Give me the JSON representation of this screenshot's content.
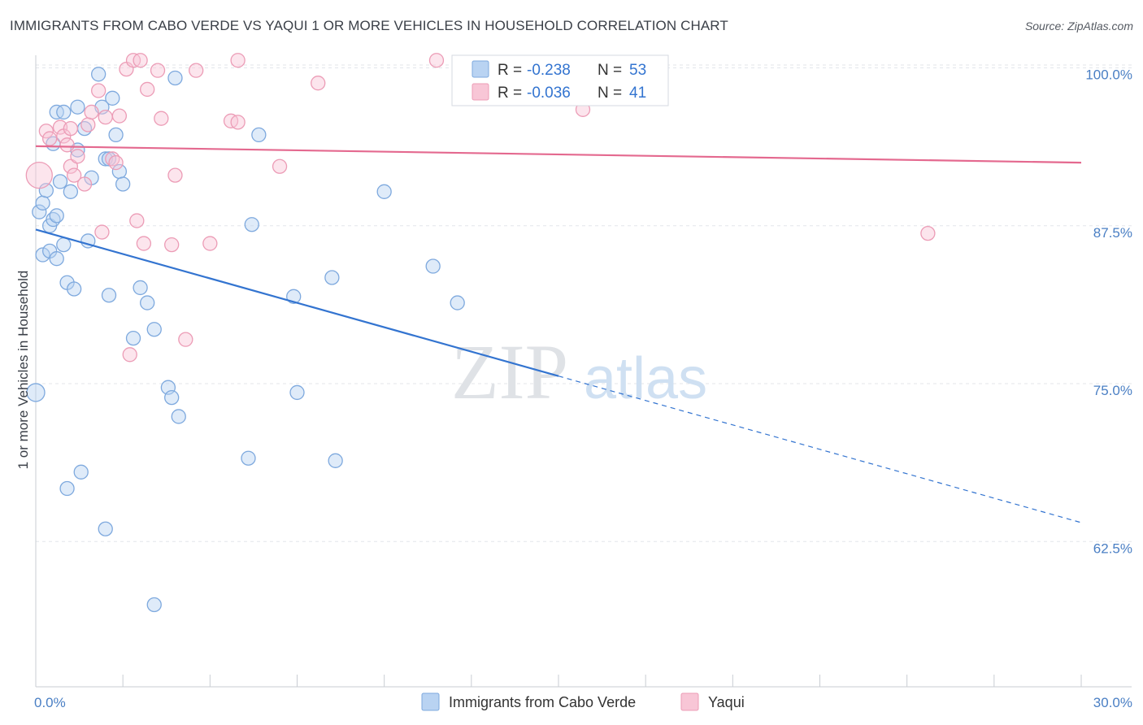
{
  "title": "IMMIGRANTS FROM CABO VERDE VS YAQUI 1 OR MORE VEHICLES IN HOUSEHOLD CORRELATION CHART",
  "source": "Source: ZipAtlas.com",
  "watermark": {
    "zip": "ZIP",
    "atlas": "atlas"
  },
  "colors": {
    "blue_fill": "#b9d3f2",
    "blue_stroke": "#7ea9de",
    "blue_line": "#3374d0",
    "pink_fill": "#f8c6d6",
    "pink_stroke": "#ec9cb6",
    "pink_line": "#e4698f",
    "tick_label": "#4a7fc4",
    "grid": "#e3e6ea"
  },
  "legend": {
    "rows": [
      {
        "r_label": "R =",
        "r_value": "-0.238",
        "n_label": "N =",
        "n_value": "53"
      },
      {
        "r_label": "R =",
        "r_value": "-0.036",
        "n_label": "N =",
        "n_value": "41"
      }
    ]
  },
  "chart_data": {
    "type": "scatter",
    "xlabel": "",
    "ylabel": "1 or more Vehicles in Household",
    "xlim": [
      0,
      30
    ],
    "ylim": [
      51,
      101
    ],
    "x_tick_labels": [
      {
        "value": 0,
        "label": "0.0%"
      },
      {
        "value": 30,
        "label": "30.0%"
      }
    ],
    "y_tick_labels": [
      {
        "value": 100,
        "label": "100.0%"
      },
      {
        "value": 87.5,
        "label": "87.5%"
      },
      {
        "value": 75,
        "label": "75.0%"
      },
      {
        "value": 62.5,
        "label": "62.5%"
      }
    ],
    "grid": true,
    "legend_position": "top-center",
    "series": [
      {
        "name": "Immigrants from Cabo Verde",
        "color": "blue",
        "R": -0.238,
        "N": 53,
        "trend": {
          "x_start": 0,
          "y_start": 87.2,
          "x_solid_end": 15,
          "y_solid_end": 75.6,
          "x_end": 30,
          "y_end": 64.0
        },
        "points": [
          [
            0.0,
            74.3,
            2
          ],
          [
            0.1,
            88.6,
            1
          ],
          [
            0.2,
            89.3,
            1
          ],
          [
            0.2,
            85.2,
            1
          ],
          [
            0.3,
            90.3,
            1
          ],
          [
            0.4,
            85.5,
            1
          ],
          [
            0.4,
            87.5,
            1
          ],
          [
            0.5,
            94.0,
            1
          ],
          [
            0.5,
            88.0,
            1
          ],
          [
            0.6,
            96.5,
            1
          ],
          [
            0.6,
            84.9,
            1
          ],
          [
            0.6,
            88.3,
            1
          ],
          [
            0.7,
            91.0,
            1
          ],
          [
            0.8,
            96.5,
            1
          ],
          [
            0.8,
            86.0,
            1
          ],
          [
            0.9,
            83.0,
            1
          ],
          [
            0.9,
            66.7,
            1
          ],
          [
            1.0,
            90.2,
            1
          ],
          [
            1.1,
            82.5,
            1
          ],
          [
            1.2,
            93.5,
            1
          ],
          [
            1.2,
            96.9,
            1
          ],
          [
            1.3,
            68.0,
            1
          ],
          [
            1.4,
            95.2,
            1
          ],
          [
            1.5,
            86.3,
            1
          ],
          [
            1.6,
            91.3,
            1
          ],
          [
            1.8,
            99.5,
            1
          ],
          [
            1.9,
            96.9,
            1
          ],
          [
            2.0,
            92.8,
            1
          ],
          [
            2.0,
            63.5,
            1
          ],
          [
            2.1,
            82.0,
            1
          ],
          [
            2.1,
            92.8,
            1
          ],
          [
            2.2,
            97.6,
            1
          ],
          [
            2.3,
            94.7,
            1
          ],
          [
            2.4,
            91.8,
            1
          ],
          [
            2.5,
            90.8,
            1
          ],
          [
            2.8,
            78.6,
            1
          ],
          [
            3.0,
            82.6,
            1
          ],
          [
            3.2,
            81.4,
            1
          ],
          [
            3.4,
            57.5,
            1
          ],
          [
            3.4,
            79.3,
            1
          ],
          [
            3.8,
            74.7,
            1
          ],
          [
            3.9,
            73.9,
            1
          ],
          [
            4.0,
            99.2,
            1
          ],
          [
            4.1,
            72.4,
            1
          ],
          [
            6.1,
            69.1,
            1
          ],
          [
            6.2,
            87.6,
            1
          ],
          [
            6.4,
            94.7,
            1
          ],
          [
            7.4,
            81.9,
            1
          ],
          [
            7.5,
            74.3,
            1
          ],
          [
            8.5,
            83.4,
            1
          ],
          [
            8.6,
            68.9,
            1
          ],
          [
            10.0,
            90.2,
            1
          ],
          [
            11.4,
            84.3,
            1
          ],
          [
            12.1,
            81.4,
            1
          ]
        ]
      },
      {
        "name": "Yaqui",
        "color": "pink",
        "R": -0.036,
        "N": 41,
        "trend": {
          "x_start": 0,
          "y_start": 93.8,
          "x_end": 30,
          "y_end": 92.5
        },
        "points": [
          [
            0.1,
            91.5,
            3
          ],
          [
            0.3,
            95.0,
            1
          ],
          [
            0.4,
            94.4,
            1
          ],
          [
            0.7,
            95.3,
            1
          ],
          [
            0.8,
            94.6,
            1
          ],
          [
            0.9,
            93.9,
            1
          ],
          [
            1.0,
            92.2,
            1
          ],
          [
            1.1,
            91.5,
            1
          ],
          [
            1.2,
            93.0,
            1
          ],
          [
            1.4,
            90.8,
            1
          ],
          [
            1.5,
            95.5,
            1
          ],
          [
            1.6,
            96.5,
            1
          ],
          [
            1.8,
            98.2,
            1
          ],
          [
            1.9,
            87.0,
            1
          ],
          [
            2.0,
            96.1,
            1
          ],
          [
            2.2,
            92.8,
            1
          ],
          [
            2.3,
            92.5,
            1
          ],
          [
            2.4,
            96.2,
            1
          ],
          [
            2.6,
            99.9,
            1
          ],
          [
            2.7,
            77.3,
            1
          ],
          [
            2.8,
            100.6,
            1
          ],
          [
            2.9,
            87.9,
            1
          ],
          [
            3.0,
            100.6,
            1
          ],
          [
            3.1,
            86.1,
            1
          ],
          [
            3.2,
            98.3,
            1
          ],
          [
            3.5,
            99.8,
            1
          ],
          [
            3.6,
            96.0,
            1
          ],
          [
            3.9,
            86.0,
            1
          ],
          [
            4.0,
            91.5,
            1
          ],
          [
            4.3,
            78.5,
            1
          ],
          [
            4.6,
            99.8,
            1
          ],
          [
            5.0,
            86.1,
            1
          ],
          [
            5.6,
            95.8,
            1
          ],
          [
            5.8,
            95.7,
            1
          ],
          [
            5.8,
            100.6,
            1
          ],
          [
            7.0,
            92.2,
            1
          ],
          [
            8.1,
            98.8,
            1
          ],
          [
            11.5,
            100.6,
            1
          ],
          [
            15.7,
            96.7,
            1
          ],
          [
            25.6,
            86.9,
            1
          ],
          [
            1.0,
            95.2,
            1
          ]
        ]
      }
    ],
    "legend_entries": [
      "Immigrants from Cabo Verde",
      "Yaqui"
    ]
  }
}
